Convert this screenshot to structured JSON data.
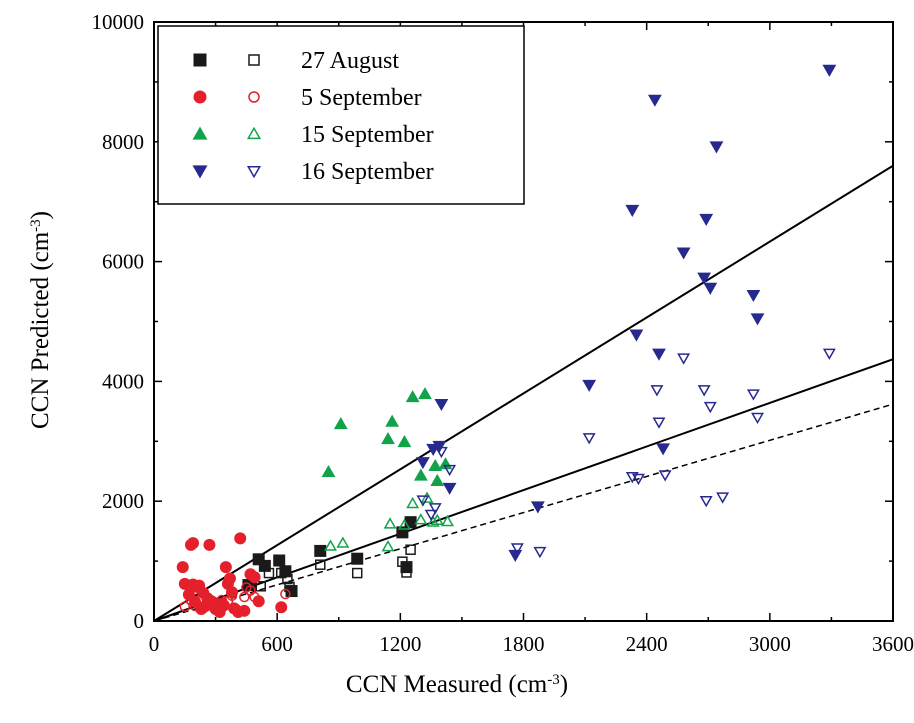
{
  "chart_data": {
    "type": "scatter",
    "title": "",
    "xlabel": "CCN Measured (cm",
    "xlabel_sup": "-3",
    "xlabel_suffix": ")",
    "ylabel": "CCN Predicted (cm",
    "ylabel_sup": "-3",
    "ylabel_suffix": ")",
    "xlim": [
      0,
      3600
    ],
    "ylim": [
      0,
      10000
    ],
    "x_ticks": [
      0,
      600,
      1200,
      1800,
      2400,
      3000,
      3600
    ],
    "x_tick_labels": [
      "0",
      "600",
      "1200",
      "1800",
      "2400",
      "3000",
      "3600"
    ],
    "y_ticks": [
      0,
      2000,
      4000,
      6000,
      8000,
      10000
    ],
    "y_tick_labels": [
      "0",
      "2000",
      "4000",
      "6000",
      "8000",
      "10000"
    ],
    "grid": false,
    "legend_position": "top-left",
    "legend": [
      {
        "label": "27 August",
        "color": "#1a1a1a",
        "marker": "square"
      },
      {
        "label": "5 September",
        "color": "#e3202b",
        "marker": "circle"
      },
      {
        "label": "15 September",
        "color": "#12a34a",
        "marker": "triangle-up"
      },
      {
        "label": "16 September",
        "color": "#27298e",
        "marker": "triangle-down"
      }
    ],
    "lines": [
      {
        "style": "solid",
        "x": [
          0,
          3600
        ],
        "y": [
          0,
          7600
        ]
      },
      {
        "style": "solid",
        "x": [
          0,
          3600
        ],
        "y": [
          0,
          4370
        ]
      },
      {
        "style": "dashed",
        "x": [
          0,
          3600
        ],
        "y": [
          0,
          3620
        ]
      }
    ],
    "series": [
      {
        "date": "27 August",
        "fill": "filled",
        "marker": "square",
        "color": "#1a1a1a",
        "points": [
          [
            460,
            600
          ],
          [
            510,
            1030
          ],
          [
            540,
            920
          ],
          [
            610,
            1010
          ],
          [
            640,
            830
          ],
          [
            670,
            500
          ],
          [
            810,
            1170
          ],
          [
            990,
            1040
          ],
          [
            1210,
            1480
          ],
          [
            1230,
            900
          ],
          [
            1250,
            1650
          ]
        ]
      },
      {
        "date": "27 August",
        "fill": "open",
        "marker": "square",
        "color": "#1a1a1a",
        "points": [
          [
            470,
            600
          ],
          [
            520,
            580
          ],
          [
            560,
            800
          ],
          [
            620,
            800
          ],
          [
            650,
            700
          ],
          [
            660,
            570
          ],
          [
            810,
            940
          ],
          [
            990,
            800
          ],
          [
            1210,
            990
          ],
          [
            1230,
            810
          ],
          [
            1250,
            1190
          ]
        ]
      },
      {
        "date": "5 September",
        "fill": "filled",
        "marker": "circle",
        "color": "#e3202b",
        "points": [
          [
            140,
            900
          ],
          [
            150,
            620
          ],
          [
            170,
            440
          ],
          [
            180,
            1270
          ],
          [
            190,
            1300
          ],
          [
            190,
            610
          ],
          [
            200,
            320
          ],
          [
            210,
            570
          ],
          [
            220,
            590
          ],
          [
            230,
            200
          ],
          [
            240,
            470
          ],
          [
            250,
            250
          ],
          [
            260,
            380
          ],
          [
            270,
            1270
          ],
          [
            280,
            330
          ],
          [
            300,
            200
          ],
          [
            320,
            150
          ],
          [
            330,
            290
          ],
          [
            340,
            260
          ],
          [
            350,
            900
          ],
          [
            360,
            620
          ],
          [
            370,
            710
          ],
          [
            380,
            480
          ],
          [
            390,
            210
          ],
          [
            410,
            150
          ],
          [
            420,
            1380
          ],
          [
            440,
            170
          ],
          [
            470,
            780
          ],
          [
            490,
            730
          ],
          [
            510,
            330
          ],
          [
            620,
            230
          ]
        ]
      },
      {
        "date": "5 September",
        "fill": "open",
        "marker": "circle",
        "color": "#e3202b",
        "points": [
          [
            150,
            240
          ],
          [
            180,
            350
          ],
          [
            200,
            250
          ],
          [
            220,
            340
          ],
          [
            240,
            210
          ],
          [
            260,
            300
          ],
          [
            280,
            260
          ],
          [
            320,
            240
          ],
          [
            330,
            350
          ],
          [
            360,
            330
          ],
          [
            380,
            420
          ],
          [
            400,
            200
          ],
          [
            440,
            400
          ],
          [
            450,
            560
          ],
          [
            470,
            510
          ],
          [
            490,
            400
          ],
          [
            640,
            450
          ]
        ]
      },
      {
        "date": "15 September",
        "fill": "filled",
        "marker": "triangle-up",
        "color": "#12a34a",
        "points": [
          [
            850,
            2490
          ],
          [
            910,
            3290
          ],
          [
            1140,
            3040
          ],
          [
            1160,
            3330
          ],
          [
            1220,
            2990
          ],
          [
            1260,
            3740
          ],
          [
            1300,
            2430
          ],
          [
            1320,
            3790
          ],
          [
            1370,
            2590
          ],
          [
            1380,
            2340
          ],
          [
            1420,
            2620
          ]
        ]
      },
      {
        "date": "15 September",
        "fill": "open",
        "marker": "triangle-up",
        "color": "#12a34a",
        "points": [
          [
            860,
            1250
          ],
          [
            920,
            1300
          ],
          [
            1140,
            1240
          ],
          [
            1150,
            1620
          ],
          [
            1220,
            1600
          ],
          [
            1260,
            1960
          ],
          [
            1300,
            1690
          ],
          [
            1330,
            2050
          ],
          [
            1360,
            1650
          ],
          [
            1380,
            1680
          ],
          [
            1430,
            1660
          ]
        ]
      },
      {
        "date": "16 September",
        "fill": "filled",
        "marker": "triangle-down",
        "color": "#27298e",
        "points": [
          [
            1310,
            2650
          ],
          [
            1360,
            2870
          ],
          [
            1390,
            2920
          ],
          [
            1400,
            3620
          ],
          [
            1440,
            2220
          ],
          [
            1760,
            1100
          ],
          [
            1870,
            1910
          ],
          [
            2120,
            3940
          ],
          [
            2330,
            6860
          ],
          [
            2350,
            4780
          ],
          [
            2440,
            8700
          ],
          [
            2460,
            4460
          ],
          [
            2480,
            2880
          ],
          [
            2580,
            6150
          ],
          [
            2680,
            5730
          ],
          [
            2690,
            6710
          ],
          [
            2710,
            5560
          ],
          [
            2740,
            7920
          ],
          [
            2920,
            5440
          ],
          [
            2940,
            5050
          ],
          [
            3290,
            9200
          ]
        ]
      },
      {
        "date": "16 September",
        "fill": "open",
        "marker": "triangle-down",
        "color": "#27298e",
        "points": [
          [
            1310,
            2020
          ],
          [
            1350,
            1780
          ],
          [
            1370,
            1890
          ],
          [
            1400,
            2830
          ],
          [
            1440,
            2530
          ],
          [
            1770,
            1220
          ],
          [
            1880,
            1160
          ],
          [
            2120,
            3060
          ],
          [
            2330,
            2410
          ],
          [
            2360,
            2380
          ],
          [
            2450,
            3860
          ],
          [
            2460,
            3320
          ],
          [
            2490,
            2440
          ],
          [
            2580,
            4390
          ],
          [
            2680,
            3860
          ],
          [
            2690,
            2010
          ],
          [
            2710,
            3580
          ],
          [
            2770,
            2070
          ],
          [
            2920,
            3790
          ],
          [
            2940,
            3400
          ],
          [
            3290,
            4470
          ]
        ]
      }
    ]
  }
}
